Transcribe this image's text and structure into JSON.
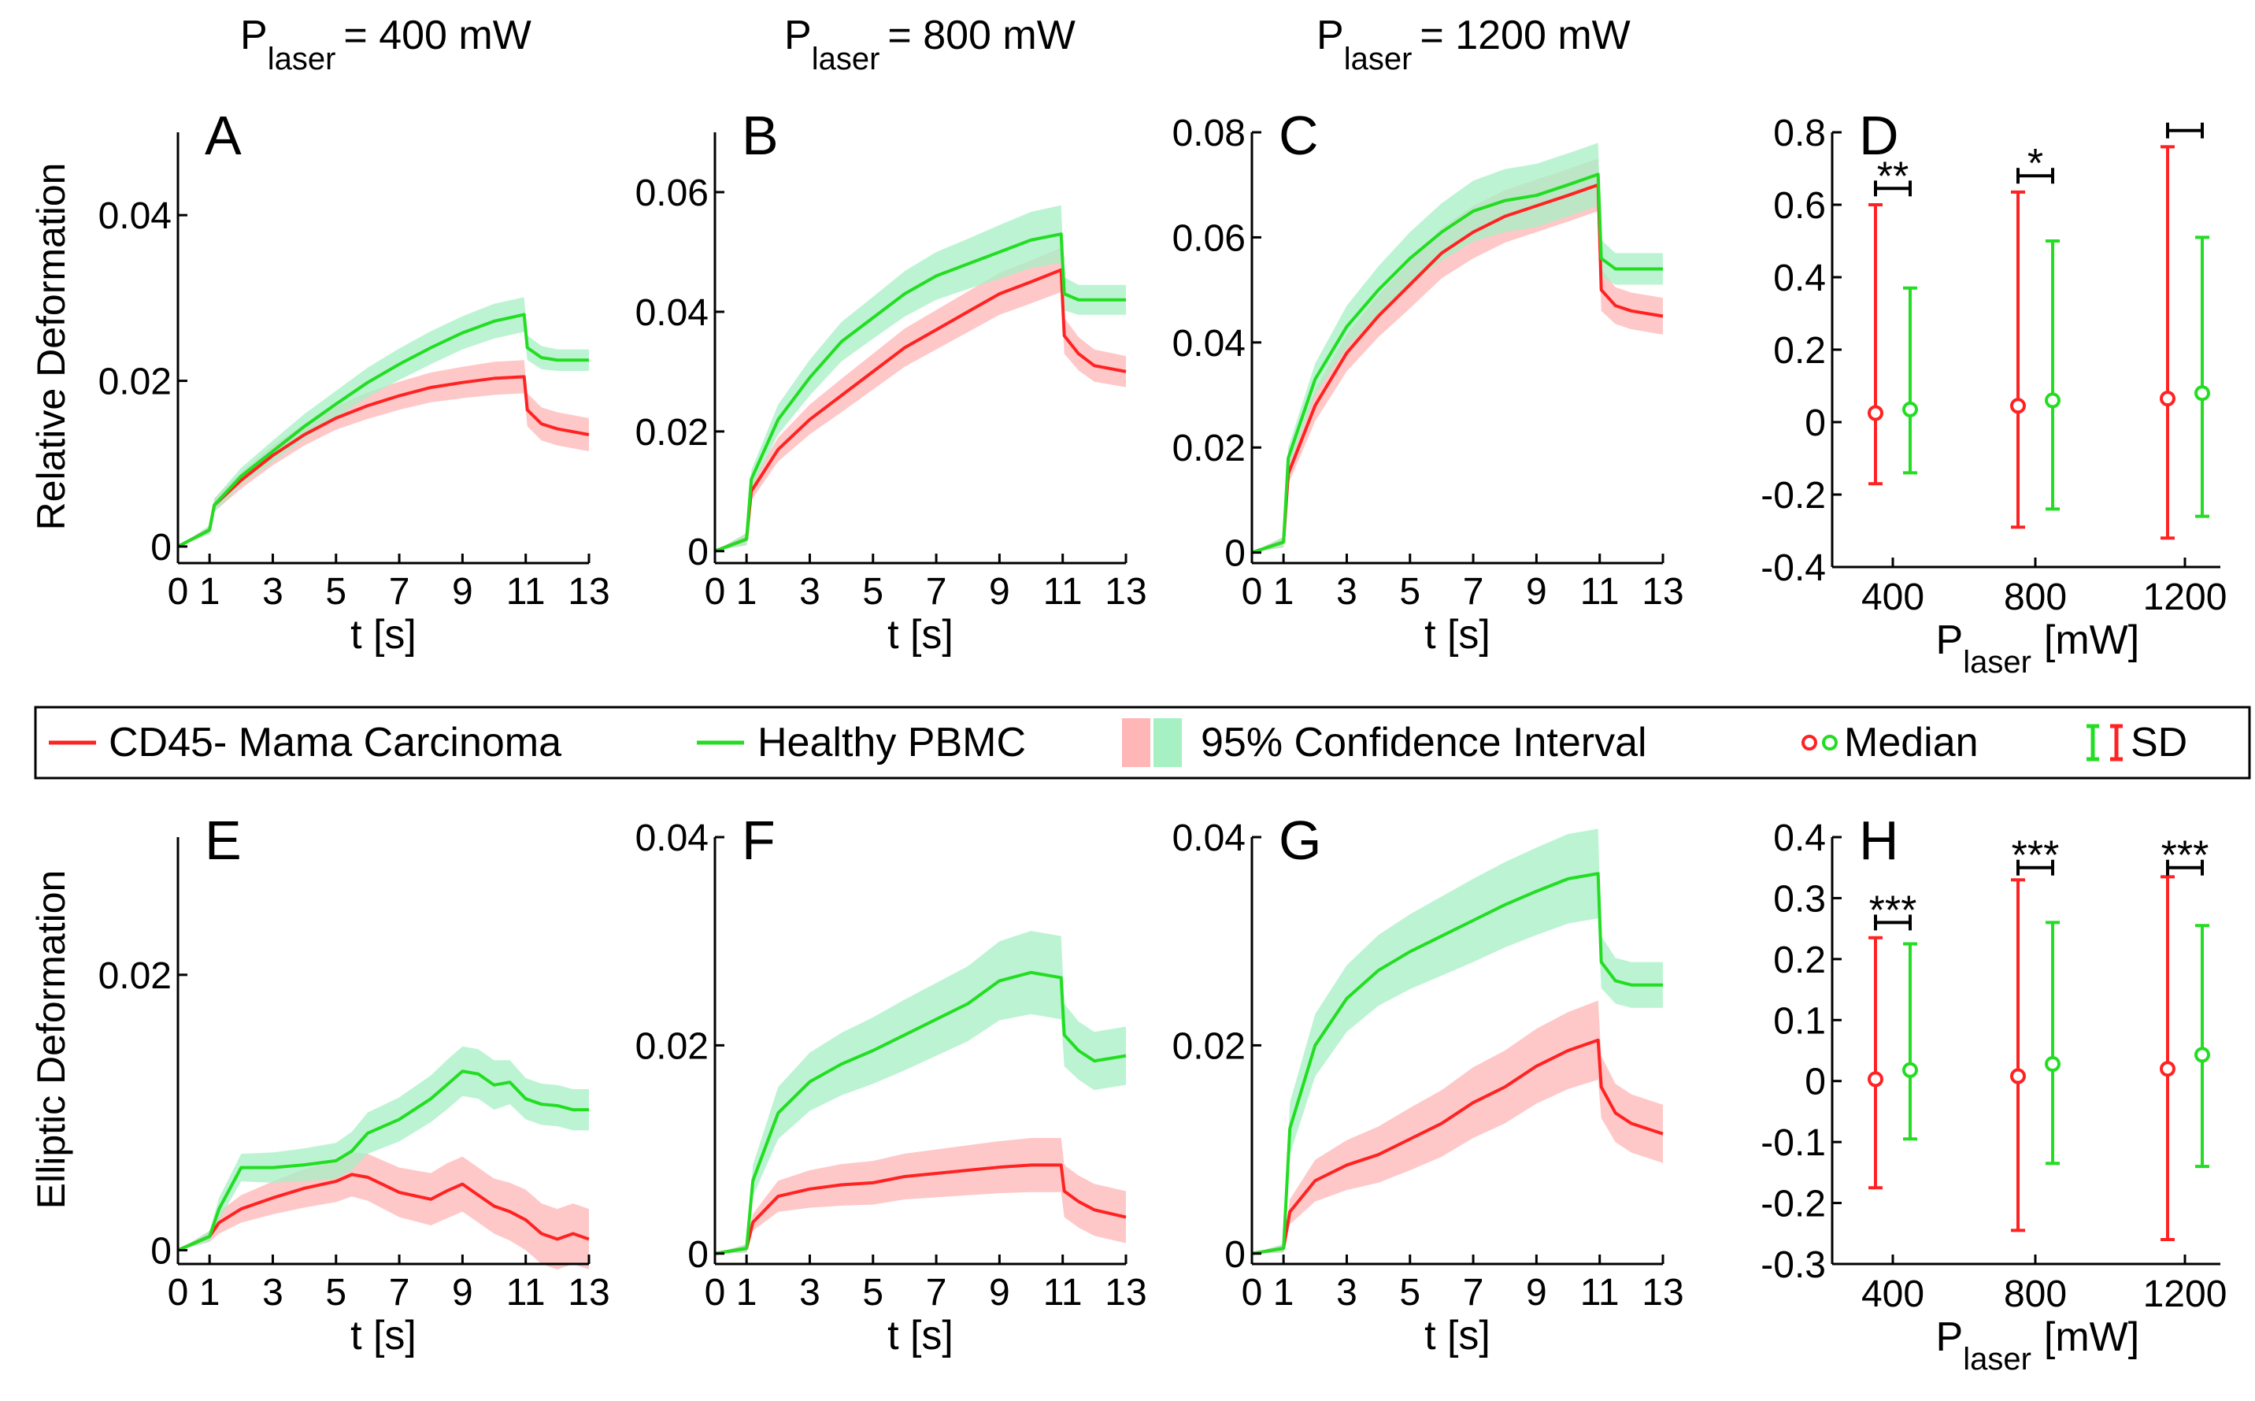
{
  "colors": {
    "red": "#ff2222",
    "green": "#22dd22",
    "red_band": "#ffb6b6",
    "green_band": "#a6f0c4",
    "axis": "#000000"
  },
  "column_headers": [
    {
      "p": "P",
      "sub": "laser",
      "rest": "= 400 mW"
    },
    {
      "p": "P",
      "sub": "laser",
      "rest": "= 800 mW"
    },
    {
      "p": "P",
      "sub": "laser",
      "rest": "= 1200 mW"
    }
  ],
  "row_labels": {
    "top": "Relative Deformation",
    "bottom": "Elliptic Deformation"
  },
  "legend": {
    "red_label": "CD45- Mama Carcinoma",
    "green_label": "Healthy PBMC",
    "ci_label": "95% Confidence Interval",
    "median_label": "Median",
    "sd_label": "SD"
  },
  "chart_data": [
    {
      "id": "A",
      "type": "line",
      "panel_label": "A",
      "xlabel": "t [s]",
      "ylabel": "Relative Deformation",
      "xlim": [
        0,
        13
      ],
      "ylim": [
        -0.002,
        0.05
      ],
      "xticks": [
        0,
        1,
        3,
        5,
        7,
        9,
        11,
        13
      ],
      "xtick_labels": [
        "0",
        "1",
        "3",
        "5",
        "7",
        "9",
        "11",
        "13"
      ],
      "yticks": [
        0,
        0.02,
        0.04
      ],
      "ytick_labels": [
        "0",
        "0.02",
        "0.04"
      ],
      "x": [
        0,
        1,
        1.15,
        2,
        3,
        4,
        5,
        6,
        7,
        8,
        9,
        10,
        10.95,
        11.05,
        11.5,
        12,
        13
      ],
      "series": [
        {
          "name": "CD45- Mama Carcinoma",
          "color": "red",
          "values": [
            0,
            0.002,
            0.005,
            0.008,
            0.011,
            0.0135,
            0.0155,
            0.017,
            0.0182,
            0.0192,
            0.0198,
            0.0203,
            0.0205,
            0.0165,
            0.0148,
            0.0142,
            0.0135
          ],
          "ci": [
            0,
            0.0005,
            0.0008,
            0.001,
            0.0012,
            0.0013,
            0.0014,
            0.0016,
            0.0017,
            0.0018,
            0.0019,
            0.002,
            0.002,
            0.002,
            0.002,
            0.002,
            0.002
          ]
        },
        {
          "name": "Healthy PBMC",
          "color": "green",
          "values": [
            0,
            0.002,
            0.005,
            0.0085,
            0.0115,
            0.0145,
            0.0172,
            0.0198,
            0.022,
            0.024,
            0.0258,
            0.0272,
            0.028,
            0.024,
            0.0228,
            0.0225,
            0.0225
          ],
          "ci": [
            0,
            0.0005,
            0.0008,
            0.001,
            0.0013,
            0.0015,
            0.0016,
            0.0018,
            0.0019,
            0.002,
            0.002,
            0.0021,
            0.0021,
            0.0015,
            0.0014,
            0.0013,
            0.0013
          ]
        }
      ]
    },
    {
      "id": "B",
      "type": "line",
      "panel_label": "B",
      "xlabel": "t [s]",
      "ylabel": "",
      "xlim": [
        0,
        13
      ],
      "ylim": [
        -0.002,
        0.07
      ],
      "xticks": [
        0,
        1,
        3,
        5,
        7,
        9,
        11,
        13
      ],
      "xtick_labels": [
        "0",
        "1",
        "3",
        "5",
        "7",
        "9",
        "11",
        "13"
      ],
      "yticks": [
        0,
        0.02,
        0.04,
        0.06
      ],
      "ytick_labels": [
        "0",
        "0.02",
        "0.04",
        "0.06"
      ],
      "x": [
        0,
        1,
        1.15,
        2,
        3,
        4,
        5,
        6,
        7,
        8,
        9,
        10,
        10.95,
        11.05,
        11.5,
        12,
        13
      ],
      "series": [
        {
          "name": "CD45- Mama Carcinoma",
          "color": "red",
          "values": [
            0,
            0.002,
            0.01,
            0.017,
            0.022,
            0.026,
            0.03,
            0.034,
            0.037,
            0.04,
            0.043,
            0.045,
            0.047,
            0.036,
            0.033,
            0.031,
            0.03
          ],
          "ci": [
            0,
            0.001,
            0.0015,
            0.002,
            0.0025,
            0.0028,
            0.003,
            0.0032,
            0.0033,
            0.0034,
            0.0035,
            0.0036,
            0.0037,
            0.003,
            0.0028,
            0.0027,
            0.0026
          ]
        },
        {
          "name": "Healthy PBMC",
          "color": "green",
          "values": [
            0,
            0.002,
            0.012,
            0.022,
            0.029,
            0.035,
            0.039,
            0.043,
            0.046,
            0.048,
            0.05,
            0.052,
            0.053,
            0.043,
            0.042,
            0.042,
            0.042
          ],
          "ci": [
            0,
            0.001,
            0.0015,
            0.0025,
            0.003,
            0.0033,
            0.0035,
            0.0038,
            0.004,
            0.0042,
            0.0045,
            0.0047,
            0.0048,
            0.0028,
            0.0025,
            0.0025,
            0.0025
          ]
        }
      ]
    },
    {
      "id": "C",
      "type": "line",
      "panel_label": "C",
      "xlabel": "t [s]",
      "ylabel": "",
      "xlim": [
        0,
        13
      ],
      "ylim": [
        -0.002,
        0.08
      ],
      "xticks": [
        0,
        1,
        3,
        5,
        7,
        9,
        11,
        13
      ],
      "xtick_labels": [
        "0",
        "1",
        "3",
        "5",
        "7",
        "9",
        "11",
        "13"
      ],
      "yticks": [
        0,
        0.02,
        0.04,
        0.06,
        0.08
      ],
      "ytick_labels": [
        "0",
        "0.02",
        "0.04",
        "0.06",
        "0.08"
      ],
      "x": [
        0,
        1,
        1.15,
        2,
        3,
        4,
        5,
        6,
        7,
        8,
        9,
        10,
        10.95,
        11.05,
        11.5,
        12,
        13
      ],
      "series": [
        {
          "name": "CD45- Mama Carcinoma",
          "color": "red",
          "values": [
            0,
            0.002,
            0.015,
            0.028,
            0.038,
            0.045,
            0.051,
            0.057,
            0.061,
            0.064,
            0.066,
            0.068,
            0.07,
            0.05,
            0.047,
            0.046,
            0.045
          ],
          "ci": [
            0,
            0.001,
            0.002,
            0.003,
            0.0035,
            0.004,
            0.0045,
            0.0048,
            0.005,
            0.005,
            0.005,
            0.005,
            0.005,
            0.004,
            0.0035,
            0.0035,
            0.0035
          ]
        },
        {
          "name": "Healthy PBMC",
          "color": "green",
          "values": [
            0,
            0.002,
            0.018,
            0.033,
            0.043,
            0.05,
            0.056,
            0.061,
            0.065,
            0.067,
            0.068,
            0.07,
            0.072,
            0.056,
            0.054,
            0.054,
            0.054
          ],
          "ci": [
            0,
            0.001,
            0.002,
            0.003,
            0.004,
            0.0045,
            0.005,
            0.0055,
            0.0058,
            0.006,
            0.006,
            0.006,
            0.006,
            0.0035,
            0.003,
            0.003,
            0.003
          ]
        }
      ]
    },
    {
      "id": "D",
      "type": "scatter",
      "panel_label": "D",
      "xlabel_p": "P",
      "xlabel_sub": "laser",
      "xlabel_rest": "[mW]",
      "ylabel": "",
      "categories": [
        "400",
        "800",
        "1200"
      ],
      "ylim": [
        -0.4,
        0.8
      ],
      "yticks": [
        -0.4,
        -0.2,
        0,
        0.2,
        0.4,
        0.6,
        0.8
      ],
      "ytick_labels": [
        "-0.4",
        "-0.2",
        "0",
        "0.2",
        "0.4",
        "0.6",
        "0.8"
      ],
      "series": [
        {
          "name": "CD45- Mama Carcinoma",
          "color": "red",
          "median": [
            0.025,
            0.045,
            0.065
          ],
          "sd_low": [
            -0.17,
            -0.29,
            -0.32
          ],
          "sd_high": [
            0.6,
            0.635,
            0.76
          ]
        },
        {
          "name": "Healthy PBMC",
          "color": "green",
          "median": [
            0.035,
            0.06,
            0.08
          ],
          "sd_low": [
            -0.14,
            -0.24,
            -0.26
          ],
          "sd_high": [
            0.37,
            0.5,
            0.51
          ]
        }
      ],
      "significance": [
        {
          "category": 0,
          "label": "**",
          "y": 0.645
        },
        {
          "category": 1,
          "label": "*",
          "y": 0.68
        },
        {
          "category": 2,
          "label": "",
          "y": 0.805
        }
      ]
    },
    {
      "id": "E",
      "type": "line",
      "panel_label": "E",
      "xlabel": "t [s]",
      "ylabel": "Elliptic Deformation",
      "xlim": [
        0,
        13
      ],
      "ylim": [
        -0.001,
        0.03
      ],
      "xticks": [
        0,
        1,
        3,
        5,
        7,
        9,
        11,
        13
      ],
      "xtick_labels": [
        "0",
        "1",
        "3",
        "5",
        "7",
        "9",
        "11",
        "13"
      ],
      "yticks": [
        0,
        0.02
      ],
      "ytick_labels": [
        "0",
        "0.02"
      ],
      "x": [
        0,
        1,
        1.3,
        2,
        3,
        4,
        5,
        5.5,
        6,
        7,
        8,
        8.5,
        9,
        9.5,
        10,
        10.5,
        11,
        11.5,
        12,
        12.5,
        13
      ],
      "series": [
        {
          "name": "CD45- Mama Carcinoma",
          "color": "red",
          "values": [
            0,
            0.001,
            0.002,
            0.003,
            0.0038,
            0.0045,
            0.005,
            0.0055,
            0.0053,
            0.0042,
            0.0037,
            0.0043,
            0.0048,
            0.004,
            0.0032,
            0.0028,
            0.0022,
            0.0012,
            0.0008,
            0.0012,
            0.0008
          ],
          "ci": [
            0,
            0.0004,
            0.0008,
            0.001,
            0.0012,
            0.0014,
            0.0015,
            0.0016,
            0.0017,
            0.0018,
            0.0019,
            0.002,
            0.002,
            0.002,
            0.002,
            0.0021,
            0.0022,
            0.0022,
            0.0022,
            0.0022,
            0.0022
          ]
        },
        {
          "name": "Healthy PBMC",
          "color": "green",
          "values": [
            0,
            0.001,
            0.003,
            0.006,
            0.006,
            0.0062,
            0.0065,
            0.0072,
            0.0085,
            0.0095,
            0.011,
            0.012,
            0.013,
            0.0128,
            0.012,
            0.0122,
            0.011,
            0.0106,
            0.0105,
            0.0102,
            0.0102
          ],
          "ci": [
            0,
            0.0004,
            0.0008,
            0.001,
            0.0011,
            0.0012,
            0.0013,
            0.0014,
            0.0015,
            0.0016,
            0.0017,
            0.0018,
            0.0018,
            0.0018,
            0.0018,
            0.0016,
            0.0015,
            0.0015,
            0.0015,
            0.0015,
            0.0015
          ]
        }
      ]
    },
    {
      "id": "F",
      "type": "line",
      "panel_label": "F",
      "xlabel": "t [s]",
      "ylabel": "",
      "xlim": [
        0,
        13
      ],
      "ylim": [
        -0.001,
        0.04
      ],
      "xticks": [
        0,
        1,
        3,
        5,
        7,
        9,
        11,
        13
      ],
      "xtick_labels": [
        "0",
        "1",
        "3",
        "5",
        "7",
        "9",
        "11",
        "13"
      ],
      "yticks": [
        0,
        0.02,
        0.04
      ],
      "ytick_labels": [
        "0",
        "0.02",
        "0.04"
      ],
      "x": [
        0,
        1,
        1.2,
        2,
        3,
        4,
        5,
        6,
        7,
        8,
        9,
        10,
        10.95,
        11.05,
        11.5,
        12,
        13
      ],
      "series": [
        {
          "name": "CD45- Mama Carcinoma",
          "color": "red",
          "values": [
            0,
            0.0005,
            0.003,
            0.0055,
            0.0062,
            0.0066,
            0.0068,
            0.0074,
            0.0077,
            0.008,
            0.0083,
            0.0085,
            0.0085,
            0.006,
            0.005,
            0.0042,
            0.0035
          ],
          "ci": [
            0,
            0.0004,
            0.0008,
            0.0015,
            0.0018,
            0.002,
            0.0021,
            0.0022,
            0.0023,
            0.0024,
            0.0025,
            0.0026,
            0.0026,
            0.0025,
            0.0025,
            0.0025,
            0.0025
          ]
        },
        {
          "name": "Healthy PBMC",
          "color": "green",
          "values": [
            0,
            0.0005,
            0.007,
            0.0135,
            0.0165,
            0.0182,
            0.0195,
            0.021,
            0.0225,
            0.024,
            0.0262,
            0.027,
            0.0265,
            0.021,
            0.0195,
            0.0185,
            0.019
          ],
          "ci": [
            0,
            0.0004,
            0.0015,
            0.0025,
            0.0028,
            0.003,
            0.0032,
            0.0034,
            0.0035,
            0.0036,
            0.0038,
            0.004,
            0.004,
            0.003,
            0.0028,
            0.0028,
            0.0028
          ]
        }
      ]
    },
    {
      "id": "G",
      "type": "line",
      "panel_label": "G",
      "xlabel": "t [s]",
      "ylabel": "",
      "xlim": [
        0,
        13
      ],
      "ylim": [
        -0.001,
        0.04
      ],
      "xticks": [
        0,
        1,
        3,
        5,
        7,
        9,
        11,
        13
      ],
      "xtick_labels": [
        "0",
        "1",
        "3",
        "5",
        "7",
        "9",
        "11",
        "13"
      ],
      "yticks": [
        0,
        0.02,
        0.04
      ],
      "ytick_labels": [
        "0",
        "0.02",
        "0.04"
      ],
      "x": [
        0,
        1,
        1.2,
        2,
        3,
        4,
        5,
        6,
        7,
        8,
        9,
        10,
        10.95,
        11.05,
        11.5,
        12,
        13
      ],
      "series": [
        {
          "name": "CD45- Mama Carcinoma",
          "color": "red",
          "values": [
            0,
            0.0005,
            0.004,
            0.007,
            0.0085,
            0.0095,
            0.011,
            0.0125,
            0.0145,
            0.016,
            0.018,
            0.0195,
            0.0205,
            0.016,
            0.0135,
            0.0125,
            0.0115
          ],
          "ci": [
            0,
            0.0004,
            0.0012,
            0.002,
            0.0024,
            0.0027,
            0.003,
            0.0032,
            0.0034,
            0.0035,
            0.0036,
            0.0037,
            0.0038,
            0.003,
            0.0028,
            0.0028,
            0.0028
          ]
        },
        {
          "name": "Healthy PBMC",
          "color": "green",
          "values": [
            0,
            0.0005,
            0.012,
            0.02,
            0.0245,
            0.0272,
            0.029,
            0.0305,
            0.032,
            0.0335,
            0.0348,
            0.036,
            0.0365,
            0.028,
            0.0262,
            0.0258,
            0.0258
          ],
          "ci": [
            0,
            0.0004,
            0.0025,
            0.003,
            0.0032,
            0.0034,
            0.0036,
            0.0038,
            0.004,
            0.0041,
            0.0042,
            0.0043,
            0.0043,
            0.0025,
            0.0022,
            0.0022,
            0.0022
          ]
        }
      ]
    },
    {
      "id": "H",
      "type": "scatter",
      "panel_label": "H",
      "xlabel_p": "P",
      "xlabel_sub": "laser",
      "xlabel_rest": "[mW]",
      "ylabel": "",
      "categories": [
        "400",
        "800",
        "1200"
      ],
      "ylim": [
        -0.3,
        0.4
      ],
      "yticks": [
        -0.3,
        -0.2,
        -0.1,
        0,
        0.1,
        0.2,
        0.3,
        0.4
      ],
      "ytick_labels": [
        "-0.3",
        "-0.2",
        "-0.1",
        "0",
        "0.1",
        "0.2",
        "0.3",
        "0.4"
      ],
      "series": [
        {
          "name": "CD45- Mama Carcinoma",
          "color": "red",
          "median": [
            0.003,
            0.008,
            0.02
          ],
          "sd_low": [
            -0.175,
            -0.245,
            -0.26
          ],
          "sd_high": [
            0.235,
            0.33,
            0.335
          ]
        },
        {
          "name": "Healthy PBMC",
          "color": "green",
          "median": [
            0.018,
            0.028,
            0.043
          ],
          "sd_low": [
            -0.095,
            -0.135,
            -0.14
          ],
          "sd_high": [
            0.225,
            0.26,
            0.255
          ]
        }
      ],
      "significance": [
        {
          "category": 0,
          "label": "***",
          "y": 0.26
        },
        {
          "category": 1,
          "label": "***",
          "y": 0.35
        },
        {
          "category": 2,
          "label": "***",
          "y": 0.35
        }
      ]
    }
  ]
}
